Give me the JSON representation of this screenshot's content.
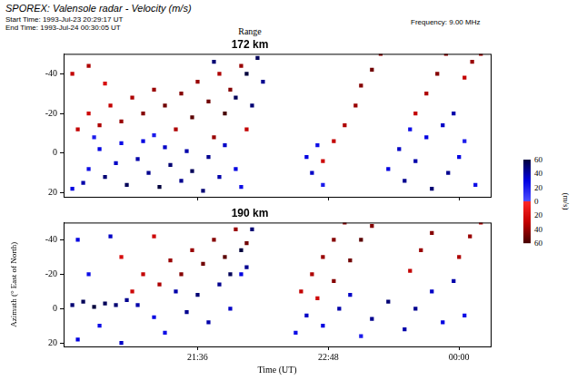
{
  "title": "SPOREX: Valensole radar - Velocity (m/s)",
  "start_time": "Start Time: 1993-Jul-23 20:29:17 UT",
  "end_time": "End Time: 1993-Jul-24 00:30:05 UT",
  "frequency": "Frequency: 9.00 MHz",
  "header": "Range",
  "colorbar": {
    "label": "(m/s)",
    "range": [
      -60,
      60
    ],
    "ticks": [
      {
        "value": 60,
        "label": "60"
      },
      {
        "value": 40,
        "label": "40"
      },
      {
        "value": 20,
        "label": "20"
      },
      0,
      {
        "value": -20,
        "label": "20"
      },
      {
        "value": -40,
        "label": "40"
      },
      {
        "value": -60,
        "label": "60"
      }
    ]
  },
  "chart_data": [
    {
      "type": "scatter",
      "title": "172 km",
      "xlim": [
        20.37,
        24.29
      ],
      "xticks": [
        {
          "value": 21.6,
          "label": "21:36"
        },
        {
          "value": 22.8,
          "label": "22:48"
        },
        {
          "value": 24,
          "label": "00:00"
        }
      ],
      "ylim": [
        -50,
        22
      ],
      "yticks": [
        -40,
        -20,
        0,
        20
      ],
      "grid": false,
      "tick_labels": "y",
      "points": [
        [
          20.45,
          18,
          30
        ],
        [
          20.55,
          15,
          40
        ],
        [
          20.6,
          8,
          25
        ],
        [
          20.7,
          -2,
          30
        ],
        [
          20.75,
          12,
          50
        ],
        [
          20.85,
          5,
          35
        ],
        [
          20.9,
          -5,
          25
        ],
        [
          20.95,
          16,
          55
        ],
        [
          21.05,
          3,
          40
        ],
        [
          21.1,
          -6,
          30
        ],
        [
          21.15,
          10,
          45
        ],
        [
          21.25,
          17,
          60
        ],
        [
          21.3,
          -3,
          35
        ],
        [
          21.35,
          6,
          50
        ],
        [
          21.45,
          14,
          45
        ],
        [
          21.5,
          -1,
          40
        ],
        [
          21.55,
          9,
          55
        ],
        [
          21.65,
          19,
          50
        ],
        [
          21.7,
          2,
          45
        ],
        [
          21.8,
          12,
          40
        ],
        [
          21.85,
          -4,
          35
        ],
        [
          21.95,
          8,
          30
        ],
        [
          22.0,
          17,
          25
        ],
        [
          21.2,
          -9,
          20
        ],
        [
          20.65,
          -8,
          20
        ],
        [
          20.5,
          -12,
          -30
        ],
        [
          20.6,
          -20,
          -25
        ],
        [
          20.7,
          -14,
          -35
        ],
        [
          20.8,
          -24,
          -30
        ],
        [
          20.9,
          -16,
          -40
        ],
        [
          21.0,
          -28,
          -35
        ],
        [
          21.1,
          -20,
          -45
        ],
        [
          21.2,
          -32,
          -40
        ],
        [
          21.3,
          -24,
          -50
        ],
        [
          21.4,
          -12,
          -35
        ],
        [
          21.45,
          -30,
          -45
        ],
        [
          21.55,
          -18,
          -55
        ],
        [
          21.6,
          -36,
          -40
        ],
        [
          21.7,
          -26,
          -50
        ],
        [
          21.75,
          -8,
          -40
        ],
        [
          21.8,
          -40,
          -35
        ],
        [
          21.85,
          -20,
          -60
        ],
        [
          21.9,
          -32,
          -45
        ],
        [
          22.0,
          -44,
          -40
        ],
        [
          22.05,
          -12,
          -30
        ],
        [
          20.45,
          -40,
          -30
        ],
        [
          20.6,
          -44,
          -35
        ],
        [
          20.75,
          -35,
          -20
        ],
        [
          21.95,
          -28,
          55
        ],
        [
          22.05,
          -40,
          60
        ],
        [
          22.1,
          -24,
          50
        ],
        [
          22.15,
          -48,
          55
        ],
        [
          21.75,
          -46,
          50
        ],
        [
          22.2,
          -36,
          45
        ],
        [
          22.6,
          2,
          30
        ],
        [
          22.65,
          10,
          35
        ],
        [
          22.7,
          -4,
          25
        ],
        [
          22.75,
          16,
          20
        ],
        [
          22.75,
          4,
          -25
        ],
        [
          22.85,
          -6,
          -30
        ],
        [
          22.95,
          -14,
          -35
        ],
        [
          23.05,
          -24,
          -40
        ],
        [
          23.1,
          -34,
          -45
        ],
        [
          23.2,
          -42,
          -50
        ],
        [
          23.28,
          -50,
          -40
        ],
        [
          23.6,
          -20,
          -30
        ],
        [
          23.7,
          -30,
          -35
        ],
        [
          23.8,
          -40,
          -45
        ],
        [
          23.88,
          -50,
          -40
        ],
        [
          24.05,
          -38,
          -30
        ],
        [
          24.12,
          -46,
          -40
        ],
        [
          24.2,
          -50,
          -35
        ],
        [
          23.35,
          8,
          30
        ],
        [
          23.45,
          -2,
          35
        ],
        [
          23.5,
          14,
          45
        ],
        [
          23.6,
          4,
          40
        ],
        [
          23.7,
          -8,
          30
        ],
        [
          23.75,
          18,
          50
        ],
        [
          23.85,
          -14,
          35
        ],
        [
          23.9,
          10,
          45
        ],
        [
          23.95,
          -20,
          40
        ],
        [
          24.0,
          2,
          30
        ],
        [
          23.55,
          -12,
          25
        ],
        [
          24.05,
          -6,
          20
        ],
        [
          24.15,
          16,
          25
        ]
      ]
    },
    {
      "type": "scatter",
      "title": "190 km",
      "xlabel": "Time (UT)",
      "ylabel": "Azimuth (° East of North)",
      "xlim": [
        20.37,
        24.29
      ],
      "xticks": [
        {
          "value": 21.6,
          "label": "21:36"
        },
        {
          "value": 22.8,
          "label": "22:48"
        },
        {
          "value": 24,
          "label": "00:00"
        }
      ],
      "ylim": [
        -50,
        22
      ],
      "yticks": [
        -40,
        -20,
        0,
        20
      ],
      "grid": false,
      "points": [
        [
          20.45,
          -2,
          50
        ],
        [
          20.55,
          -4,
          55
        ],
        [
          20.65,
          -1,
          60
        ],
        [
          20.75,
          -3,
          55
        ],
        [
          20.85,
          -2,
          50
        ],
        [
          20.95,
          -5,
          45
        ],
        [
          21.05,
          -2,
          40
        ],
        [
          20.5,
          18,
          30
        ],
        [
          20.7,
          10,
          25
        ],
        [
          20.9,
          20,
          35
        ],
        [
          21.2,
          5,
          30
        ],
        [
          21.4,
          -10,
          40
        ],
        [
          21.5,
          2,
          45
        ],
        [
          21.6,
          -8,
          50
        ],
        [
          21.7,
          8,
          40
        ],
        [
          21.8,
          -14,
          45
        ],
        [
          21.9,
          0,
          35
        ],
        [
          22.0,
          -20,
          30
        ],
        [
          21.3,
          14,
          25
        ],
        [
          20.6,
          -20,
          25
        ],
        [
          20.5,
          -40,
          30
        ],
        [
          20.8,
          -42,
          35
        ],
        [
          21.0,
          -10,
          -25
        ],
        [
          21.1,
          -20,
          -30
        ],
        [
          21.25,
          -14,
          -35
        ],
        [
          21.35,
          -28,
          -40
        ],
        [
          21.45,
          -20,
          -45
        ],
        [
          21.55,
          -34,
          -40
        ],
        [
          21.65,
          -26,
          -50
        ],
        [
          21.75,
          -40,
          -45
        ],
        [
          21.85,
          -30,
          -55
        ],
        [
          21.95,
          -46,
          -40
        ],
        [
          22.05,
          -38,
          -50
        ],
        [
          21.2,
          -42,
          -25
        ],
        [
          20.9,
          -30,
          -20
        ],
        [
          21.9,
          -20,
          55
        ],
        [
          22.0,
          -34,
          60
        ],
        [
          22.1,
          -46,
          50
        ],
        [
          22.05,
          -24,
          45
        ],
        [
          22.55,
          -10,
          -30
        ],
        [
          22.65,
          -20,
          -35
        ],
        [
          22.75,
          -30,
          -40
        ],
        [
          22.85,
          -40,
          -45
        ],
        [
          22.95,
          -50,
          -40
        ],
        [
          22.7,
          -6,
          -25
        ],
        [
          22.85,
          -16,
          -45
        ],
        [
          23.0,
          -28,
          -50
        ],
        [
          23.1,
          -40,
          -55
        ],
        [
          23.2,
          -48,
          -45
        ],
        [
          23.55,
          -22,
          -30
        ],
        [
          23.65,
          -34,
          -40
        ],
        [
          23.75,
          -44,
          -45
        ],
        [
          24.0,
          -30,
          -35
        ],
        [
          24.1,
          -42,
          -40
        ],
        [
          24.2,
          -50,
          -30
        ],
        [
          22.6,
          4,
          35
        ],
        [
          22.75,
          10,
          30
        ],
        [
          22.9,
          0,
          40
        ],
        [
          23.0,
          -8,
          35
        ],
        [
          23.2,
          6,
          45
        ],
        [
          23.35,
          -4,
          50
        ],
        [
          23.5,
          12,
          40
        ],
        [
          23.6,
          0,
          45
        ],
        [
          23.75,
          -10,
          35
        ],
        [
          23.85,
          8,
          30
        ],
        [
          23.95,
          -16,
          40
        ],
        [
          24.05,
          4,
          25
        ],
        [
          23.1,
          16,
          20
        ],
        [
          22.5,
          14,
          25
        ]
      ]
    }
  ]
}
